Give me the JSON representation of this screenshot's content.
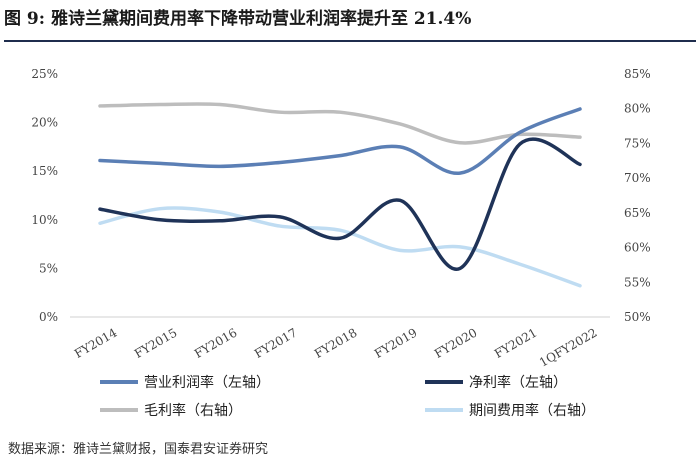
{
  "title": "图 9: 雅诗兰黛期间费用率下降带动营业利润率提升至 21.4%",
  "source": "数据来源：雅诗兰黛财报，国泰君安证券研究",
  "chart_data": {
    "type": "line",
    "categories": [
      "FY2014",
      "FY2015",
      "FY2016",
      "FY2017",
      "FY2018",
      "FY2019",
      "FY2020",
      "FY2021",
      "1QFY2022"
    ],
    "left_axis": {
      "ylim": [
        0,
        25
      ],
      "ticks": [
        "0%",
        "5%",
        "10%",
        "15%",
        "20%",
        "25%"
      ]
    },
    "right_axis": {
      "ylim": [
        50,
        85
      ],
      "ticks": [
        "50%",
        "55%",
        "60%",
        "65%",
        "70%",
        "75%",
        "80%",
        "85%"
      ]
    },
    "series": [
      {
        "name": "营业利润率（左轴）",
        "axis": "left",
        "color": "#5b7fb5",
        "values": [
          16.1,
          15.8,
          15.5,
          15.9,
          16.6,
          17.5,
          14.8,
          19.0,
          21.4
        ]
      },
      {
        "name": "净利率（左轴）",
        "axis": "left",
        "color": "#1f3358",
        "values": [
          11.1,
          10.0,
          9.9,
          10.3,
          8.1,
          12.0,
          5.0,
          17.8,
          15.7
        ]
      },
      {
        "name": "毛利率（右轴）",
        "axis": "right",
        "color": "#bdbdbd",
        "values": [
          80.4,
          80.6,
          80.6,
          79.5,
          79.5,
          77.8,
          75.1,
          76.3,
          75.9
        ]
      },
      {
        "name": "期间费用率（右轴）",
        "axis": "right",
        "color": "#bfdcf2",
        "values": [
          63.5,
          65.6,
          65.1,
          63.1,
          62.5,
          59.6,
          60.1,
          57.6,
          54.5
        ]
      }
    ],
    "legend_position": "bottom",
    "grid": false
  }
}
